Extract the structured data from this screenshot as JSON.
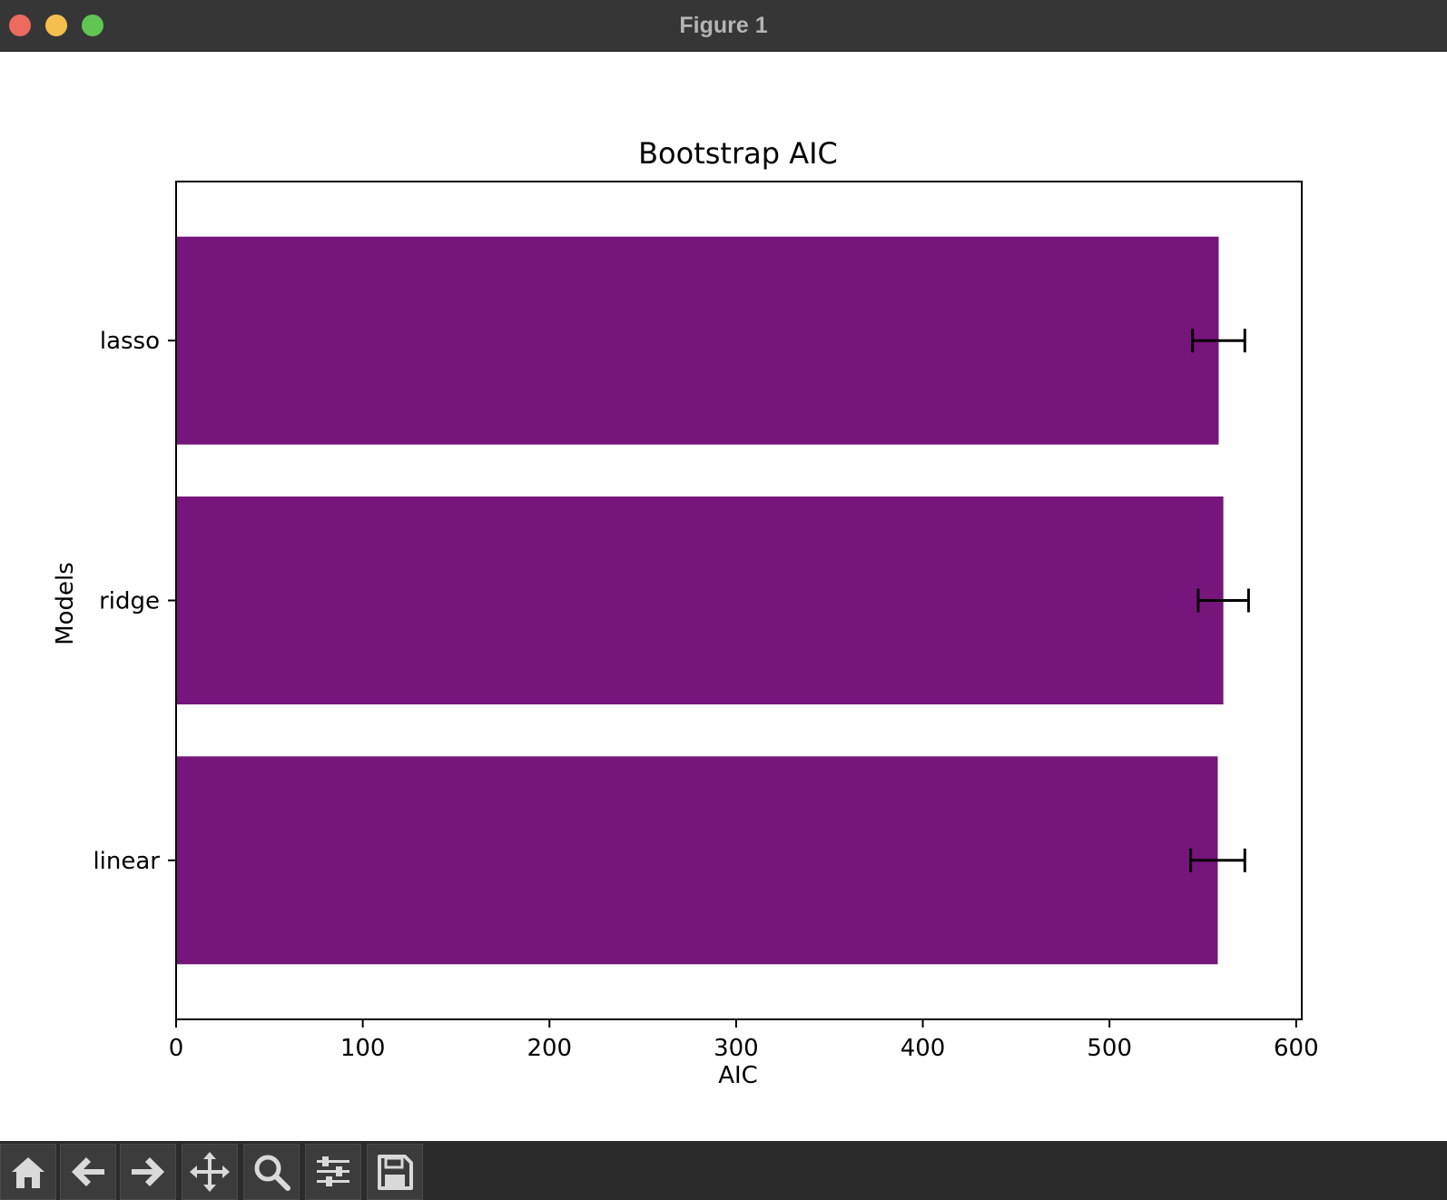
{
  "window": {
    "title": "Figure 1"
  },
  "toolbar": {
    "tools": [
      {
        "name": "home-icon"
      },
      {
        "name": "back-arrow-icon"
      },
      {
        "name": "forward-arrow-icon"
      },
      {
        "name": "pan-move-icon"
      },
      {
        "name": "zoom-magnifier-icon"
      },
      {
        "name": "configure-subplots-icon"
      },
      {
        "name": "save-floppy-icon"
      }
    ]
  },
  "colors": {
    "bar": "#76157b",
    "errorbar": "#000000",
    "titlebar": "#363636",
    "toolbar": "#2b2b2b"
  },
  "chart_data": {
    "type": "bar",
    "orientation": "horizontal",
    "title": "Bootstrap AIC",
    "xlabel": "AIC",
    "ylabel": "Models",
    "categories": [
      "linear",
      "ridge",
      "lasso"
    ],
    "values": [
      558,
      561,
      558.5
    ],
    "errors": [
      14.5,
      13.5,
      14
    ],
    "xlim": [
      0,
      603
    ],
    "xticks": [
      0,
      100,
      200,
      300,
      400,
      500,
      600
    ],
    "xtick_labels": [
      "0",
      "100",
      "200",
      "300",
      "400",
      "500",
      "600"
    ],
    "grid": false,
    "legend": "none"
  }
}
